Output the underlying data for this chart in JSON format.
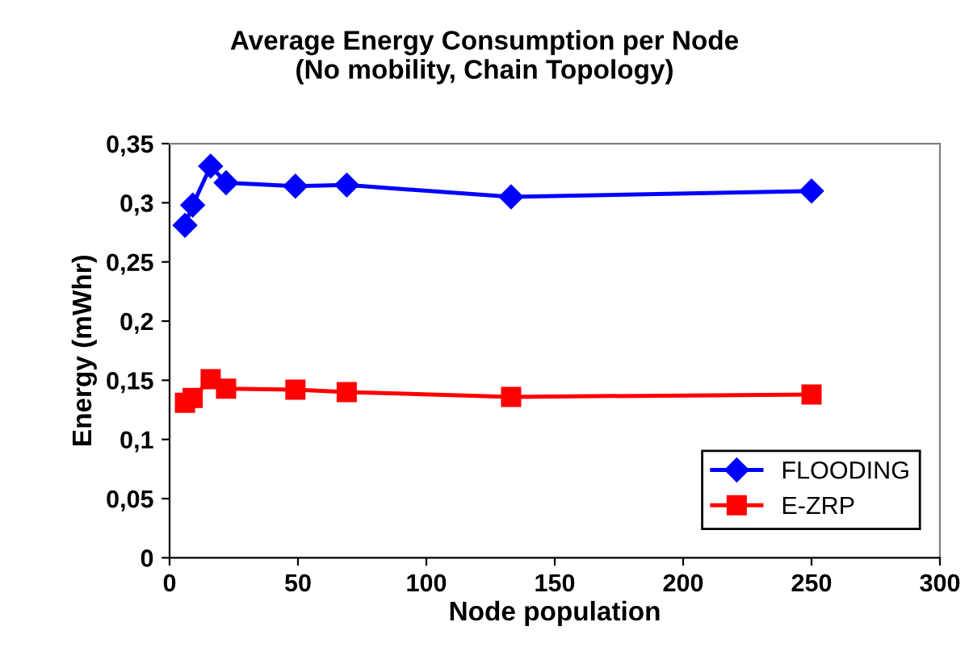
{
  "chart_data": {
    "type": "line",
    "title": "Average Energy Consumption per Node\n(No mobility, Chain Topology)",
    "xlabel": "Node population",
    "ylabel": "Energy (mWhr)",
    "x": [
      6,
      9,
      16,
      22,
      49,
      69,
      133,
      250
    ],
    "series": [
      {
        "name": "FLOODING",
        "color": "#0000ff",
        "marker": "diamond",
        "values": [
          0.281,
          0.298,
          0.331,
          0.317,
          0.314,
          0.315,
          0.305,
          0.31
        ]
      },
      {
        "name": "E-ZRP",
        "color": "#ff0000",
        "marker": "square",
        "values": [
          0.131,
          0.135,
          0.151,
          0.143,
          0.142,
          0.14,
          0.136,
          0.138
        ]
      }
    ],
    "xlim": [
      0,
      300
    ],
    "xticks": [
      0,
      50,
      100,
      150,
      200,
      250,
      300
    ],
    "ylim": [
      0,
      0.35
    ],
    "yticks": [
      {
        "value": 0,
        "label": "0"
      },
      {
        "value": 0.05,
        "label": "0,05"
      },
      {
        "value": 0.1,
        "label": "0,1"
      },
      {
        "value": 0.15,
        "label": "0,15"
      },
      {
        "value": 0.2,
        "label": "0,2"
      },
      {
        "value": 0.25,
        "label": "0,25"
      },
      {
        "value": 0.3,
        "label": "0,3"
      },
      {
        "value": 0.35,
        "label": "0,35"
      }
    ],
    "grid": false,
    "legend": "bottom right",
    "line_style": "solid"
  }
}
